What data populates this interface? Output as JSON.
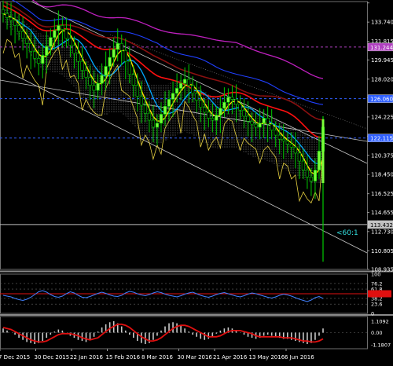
{
  "chart_data": [
    {
      "type": "candlestick",
      "panel": "price",
      "instrument_hint": "",
      "y_ticks": [
        133.74,
        131.815,
        129.945,
        128.02,
        126.15,
        124.225,
        122.3,
        120.375,
        118.45,
        116.525,
        114.655,
        112.73,
        110.805,
        108.935
      ],
      "y_tick_labels": [
        "135.665",
        "133.740",
        "131.815",
        "129.945",
        "128.020",
        "126.150",
        "124.225",
        "122.300",
        "120.375",
        "118.450",
        "116.525",
        "114.655",
        "112.730",
        "110.805",
        "108.935"
      ],
      "y_tick_values": [
        135.665,
        133.74,
        131.815,
        129.945,
        128.02,
        126.15,
        124.225,
        122.3,
        120.375,
        118.45,
        116.525,
        114.655,
        112.73,
        110.805,
        108.935
      ],
      "ylim": [
        108.935,
        135.8
      ],
      "x_tick_labels": [
        "7 Dec 2015",
        "30 Dec 2015",
        "22 Jan 2016",
        "15 Feb 2016",
        "8 Mar 2016",
        "30 Mar 2016",
        "21 Apr 2016",
        "13 May 2016",
        "6 Jun 2016"
      ],
      "price_boxes": [
        {
          "label": "131.244",
          "value": 131.244,
          "color": "#b040c0"
        },
        {
          "label": "126.060",
          "value": 126.06,
          "color": "#3060ff"
        },
        {
          "label": "122.115",
          "value": 122.115,
          "color": "#3060ff"
        },
        {
          "label": "113.432",
          "value": 113.432,
          "color": "#c0c0c0"
        }
      ],
      "annotation": "<60:1",
      "close_series": [
        134.6,
        134.2,
        133.9,
        133.4,
        132.8,
        132.1,
        131.6,
        130.8,
        130.1,
        129.6,
        130.4,
        131.3,
        132.2,
        132.9,
        133.4,
        133.0,
        132.1,
        131.4,
        130.6,
        129.8,
        128.9,
        128.2,
        127.4,
        126.9,
        127.6,
        128.4,
        129.3,
        130.2,
        131.0,
        131.6,
        130.9,
        129.8,
        128.5,
        127.4,
        126.3,
        125.4,
        124.6,
        123.9,
        123.2,
        123.6,
        124.5,
        125.3,
        126.0,
        126.6,
        127.1,
        127.6,
        128.0,
        127.4,
        126.6,
        125.9,
        125.2,
        124.7,
        124.1,
        123.9,
        124.4,
        125.1,
        125.7,
        126.2,
        126.0,
        125.5,
        124.9,
        124.3,
        123.8,
        123.5,
        123.2,
        123.6,
        124.1,
        123.5,
        122.9,
        122.4,
        122.0,
        121.8,
        121.5,
        121.2,
        120.6,
        119.8,
        118.9,
        118.2,
        117.8,
        118.9,
        120.8,
        123.2
      ],
      "upper_bands": [
        135.2,
        135.0,
        134.8,
        134.5,
        134.2,
        133.9,
        133.6,
        133.3,
        133.0,
        132.7,
        132.5,
        132.4,
        132.3,
        132.2,
        132.1,
        132.0,
        131.8,
        131.5,
        131.2,
        130.8,
        130.4,
        130.0,
        129.7,
        129.4,
        129.3,
        129.3,
        129.4,
        129.5,
        129.6,
        129.6,
        129.5,
        129.3,
        129.0,
        128.7,
        128.4,
        128.1,
        127.8,
        127.6,
        127.5,
        127.4,
        127.4,
        127.5,
        127.6,
        127.7,
        127.8,
        127.9,
        127.9,
        127.8,
        127.6,
        127.4,
        127.1,
        126.8,
        126.5,
        126.3,
        126.2,
        126.2,
        126.2,
        126.2,
        126.1,
        126.0,
        125.8,
        125.6,
        125.4,
        125.2,
        125.0,
        124.9,
        124.8,
        124.6,
        124.4,
        124.1,
        123.9,
        123.7,
        123.5,
        123.3,
        123.1,
        122.9,
        122.7,
        122.5,
        122.3,
        122.2,
        122.1,
        122.0
      ],
      "lower_bands": [
        133.8,
        133.5,
        133.1,
        132.7,
        132.2,
        131.6,
        131.0,
        130.4,
        129.8,
        129.3,
        129.0,
        128.9,
        128.8,
        128.7,
        128.6,
        128.4,
        128.1,
        127.7,
        127.2,
        126.6,
        126.0,
        125.4,
        124.9,
        124.5,
        124.3,
        124.3,
        124.4,
        124.6,
        124.7,
        124.7,
        124.6,
        124.3,
        123.9,
        123.4,
        122.9,
        122.4,
        122.0,
        121.7,
        121.5,
        121.5,
        121.6,
        121.8,
        122.0,
        122.2,
        122.4,
        122.6,
        122.7,
        122.6,
        122.4,
        122.2,
        121.9,
        121.6,
        121.3,
        121.1,
        121.0,
        121.0,
        121.1,
        121.2,
        121.2,
        121.1,
        120.9,
        120.7,
        120.5,
        120.3,
        120.1,
        120.0,
        119.9,
        119.8,
        119.6,
        119.4,
        119.2,
        119.0,
        118.8,
        118.6,
        118.4,
        118.2,
        118.0,
        117.8,
        117.6,
        117.5,
        117.5,
        117.6
      ]
    },
    {
      "type": "line",
      "panel": "rsi",
      "y_tick_labels": [
        "100",
        "76.2",
        "61.8",
        "50",
        "38.2",
        "23.6",
        "0"
      ],
      "y_tick_values": [
        100,
        76.2,
        61.8,
        50,
        38.2,
        23.6,
        0
      ],
      "ylim": [
        0,
        100
      ],
      "series": [
        {
          "name": "",
          "color": "#4080ff",
          "values": [
            46,
            44,
            42,
            38,
            35,
            33,
            36,
            41,
            48,
            55,
            58,
            54,
            48,
            43,
            41,
            44,
            50,
            55,
            52,
            46,
            41,
            40,
            43,
            47,
            51,
            54,
            51,
            47,
            44,
            43,
            46,
            52,
            56,
            54,
            50,
            47,
            45,
            48,
            52,
            55,
            53,
            49,
            46,
            44,
            42,
            45,
            49,
            52,
            54,
            50,
            46,
            43,
            41,
            44,
            48,
            51,
            53,
            50,
            47,
            44,
            42,
            45,
            49,
            52,
            50,
            47,
            44,
            41,
            39,
            42,
            46,
            49,
            47,
            44,
            40,
            36,
            33,
            30,
            34,
            40,
            43,
            38
          ]
        }
      ]
    },
    {
      "type": "bar",
      "panel": "macd",
      "y_tick_labels": [
        "1.1092",
        "0.00",
        "-1.1807"
      ],
      "y_tick_values": [
        1.1092,
        0,
        -1.1807
      ],
      "ylim": [
        -1.55,
        1.55
      ],
      "series": [
        {
          "name": "",
          "color": "#c8c8c8",
          "values": [
            0.4,
            0.2,
            0.0,
            -0.2,
            -0.5,
            -0.7,
            -0.9,
            -1.0,
            -1.1,
            -1.0,
            -0.8,
            -0.5,
            -0.2,
            0.1,
            0.3,
            0.2,
            0.0,
            -0.3,
            -0.5,
            -0.7,
            -0.8,
            -0.9,
            -0.7,
            -0.4,
            0.1,
            0.5,
            0.8,
            1.0,
            1.1,
            0.9,
            0.6,
            0.2,
            -0.2,
            -0.5,
            -0.8,
            -1.0,
            -1.1,
            -1.0,
            -0.7,
            -0.3,
            0.2,
            0.6,
            0.9,
            1.0,
            0.9,
            0.7,
            0.4,
            0.1,
            -0.2,
            -0.4,
            -0.6,
            -0.7,
            -0.6,
            -0.4,
            -0.1,
            0.2,
            0.4,
            0.5,
            0.4,
            0.2,
            0.0,
            -0.2,
            -0.4,
            -0.5,
            -0.6,
            -0.5,
            -0.3,
            -0.2,
            -0.3,
            -0.4,
            -0.5,
            -0.6,
            -0.6,
            -0.7,
            -0.8,
            -0.9,
            -1.0,
            -1.1,
            -1.0,
            -0.7,
            -0.3,
            0.4
          ]
        },
        {
          "name": "",
          "color": "#e01010",
          "values": [
            0.5,
            0.4,
            0.3,
            0.1,
            -0.1,
            -0.3,
            -0.5,
            -0.7,
            -0.8,
            -0.9,
            -0.9,
            -0.8,
            -0.6,
            -0.4,
            -0.2,
            -0.1,
            -0.1,
            -0.1,
            -0.2,
            -0.3,
            -0.5,
            -0.6,
            -0.7,
            -0.6,
            -0.5,
            -0.2,
            0.1,
            0.4,
            0.6,
            0.8,
            0.8,
            0.7,
            0.5,
            0.2,
            -0.1,
            -0.4,
            -0.6,
            -0.8,
            -0.8,
            -0.7,
            -0.5,
            -0.2,
            0.1,
            0.4,
            0.6,
            0.7,
            0.7,
            0.6,
            0.4,
            0.2,
            0.0,
            -0.2,
            -0.4,
            -0.4,
            -0.4,
            -0.3,
            -0.1,
            0.1,
            0.2,
            0.2,
            0.2,
            0.1,
            0.0,
            -0.1,
            -0.3,
            -0.4,
            -0.4,
            -0.4,
            -0.4,
            -0.4,
            -0.4,
            -0.5,
            -0.5,
            -0.5,
            -0.6,
            -0.7,
            -0.8,
            -0.8,
            -0.9,
            -0.9,
            -0.8,
            -0.6
          ]
        }
      ]
    }
  ],
  "colors": {
    "background": "#000000",
    "candle_up": "#00cc00",
    "candle_body": "#7cff3a",
    "ma_yellow": "#ffdd00",
    "ma_red": "#ff1010",
    "ma_blue": "#00a8ff",
    "ma_purple": "#c020c0",
    "ma_navy": "#2040ff",
    "ma_dark_red": "#8a1010",
    "band_dots": "#d0d0d0",
    "trendline": "#c8c8c8",
    "axis_text": "#ffffff",
    "rsi_line": "#4080ff",
    "rsi_level_red": "#e01010",
    "macd_signal": "#e01010",
    "macd_hist": "#c8c8c8"
  }
}
